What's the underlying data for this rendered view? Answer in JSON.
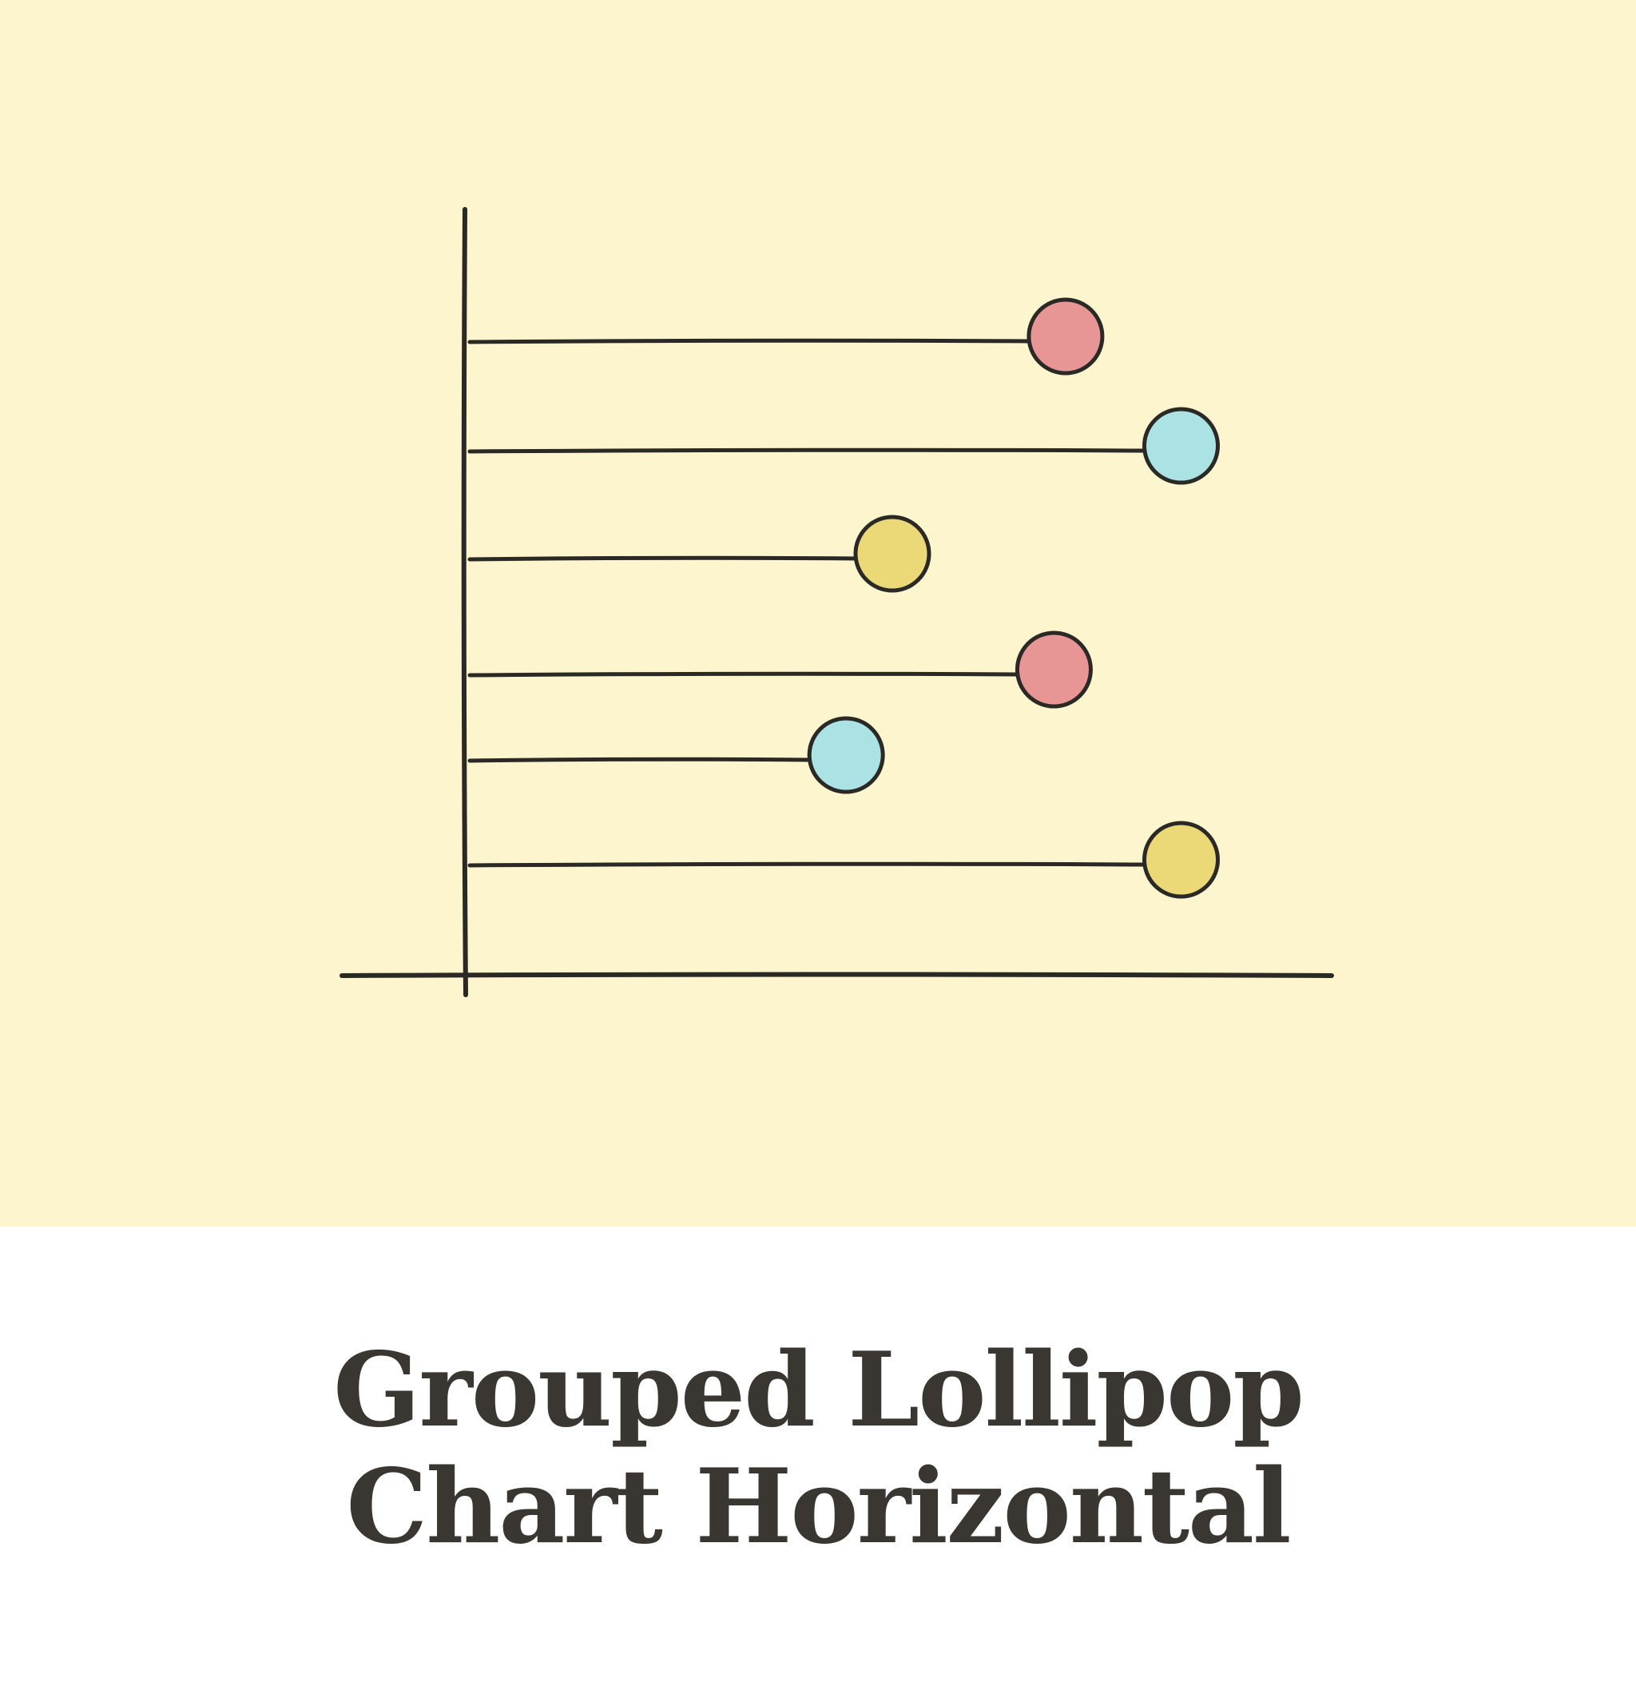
{
  "caption": {
    "line1": "Grouped Lollipop",
    "line2": "Chart Horizontal"
  },
  "colors": {
    "background": "#fdf5cd",
    "ink": "#2b2925",
    "text": "#3a3632",
    "red": "#e89595",
    "cyan": "#abe3e5",
    "yellow": "#ebd978"
  },
  "chart_data": {
    "type": "lollipop",
    "orientation": "horizontal",
    "title": "",
    "xlabel": "",
    "ylabel": "",
    "xlim": [
      0,
      100
    ],
    "grid": false,
    "values": [
      52,
      62,
      37,
      51,
      33,
      62
    ],
    "colors": [
      "red",
      "cyan",
      "yellow",
      "red",
      "cyan",
      "yellow"
    ]
  }
}
